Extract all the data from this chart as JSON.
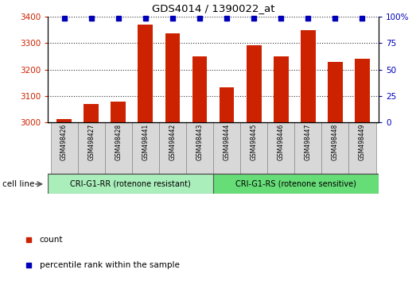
{
  "title": "GDS4014 / 1390022_at",
  "samples": [
    "GSM498426",
    "GSM498427",
    "GSM498428",
    "GSM498441",
    "GSM498442",
    "GSM498443",
    "GSM498444",
    "GSM498445",
    "GSM498446",
    "GSM498447",
    "GSM498448",
    "GSM498449"
  ],
  "counts": [
    3012,
    3068,
    3078,
    3370,
    3338,
    3250,
    3133,
    3293,
    3250,
    3348,
    3228,
    3240
  ],
  "bar_color": "#cc2200",
  "percentile_color": "#0000bb",
  "ylim_left": [
    3000,
    3400
  ],
  "ylim_right": [
    0,
    100
  ],
  "yticks_left": [
    3000,
    3100,
    3200,
    3300,
    3400
  ],
  "yticks_right": [
    0,
    25,
    50,
    75,
    100
  ],
  "grid_color": "#000000",
  "bg_color": "#ffffff",
  "group1_label": "CRI-G1-RR (rotenone resistant)",
  "group2_label": "CRI-G1-RS (rotenone sensitive)",
  "group1_color": "#aaeebb",
  "group2_color": "#66dd77",
  "group1_count": 6,
  "group2_count": 6,
  "xlabel": "cell line",
  "tick_color_left": "#cc2200",
  "tick_color_right": "#0000bb",
  "legend_count_label": "count",
  "legend_pct_label": "percentile rank within the sample",
  "label_box_color": "#d8d8d8",
  "label_box_edge": "#888888"
}
